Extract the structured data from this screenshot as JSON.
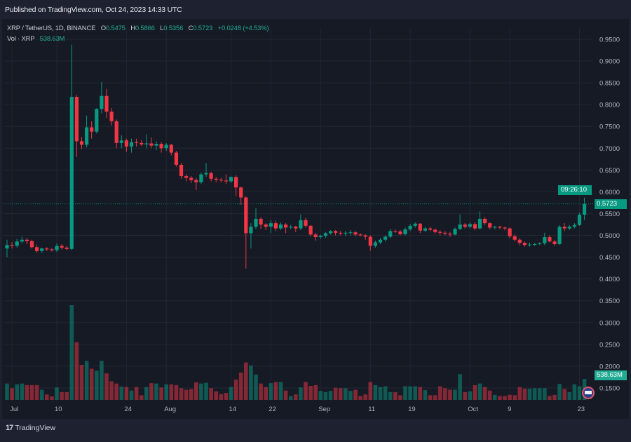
{
  "header": {
    "published": "Published on TradingView.com, Oct 24, 2023 14:33 UTC"
  },
  "legend": {
    "symbol": "XRP / TetherUS, 1D, BINANCE",
    "o_label": "O",
    "o": "0.5475",
    "h_label": "H",
    "h": "0.5866",
    "l_label": "L",
    "l": "0.5356",
    "c_label": "C",
    "c": "0.5723",
    "change": "+0.0248 (+4.53%)",
    "vol_label": "Vol · XRP",
    "vol": "538.63M"
  },
  "last_price": {
    "price": "0.5723",
    "countdown": "09:26:10"
  },
  "volume_label": "538.63M",
  "footer": {
    "logo_text": "TradingView"
  },
  "colors": {
    "up": "#089981",
    "down": "#f23645",
    "background": "#161a25",
    "grid": "#222633"
  },
  "chart_data": {
    "type": "candlestick",
    "symbol": "XRP/USDT",
    "interval": "1D",
    "price_ticks": [
      "0.9500",
      "0.9000",
      "0.8500",
      "0.8000",
      "0.7500",
      "0.7000",
      "0.6500",
      "0.6000",
      "0.5500",
      "0.5000",
      "0.4500",
      "0.4000",
      "0.3500",
      "0.3000",
      "0.2500",
      "0.2000",
      "0.1500"
    ],
    "time_ticks": [
      {
        "date": "2023-07-01",
        "label": "Jul"
      },
      {
        "date": "2023-07-10",
        "label": "10"
      },
      {
        "date": "2023-07-24",
        "label": "24"
      },
      {
        "date": "2023-08-01",
        "label": "Aug"
      },
      {
        "date": "2023-08-14",
        "label": "14"
      },
      {
        "date": "2023-08-22",
        "label": "22"
      },
      {
        "date": "2023-09-01",
        "label": "Sep"
      },
      {
        "date": "2023-09-11",
        "label": "11"
      },
      {
        "date": "2023-09-19",
        "label": "19"
      },
      {
        "date": "2023-10-01",
        "label": "Oct"
      },
      {
        "date": "2023-10-09",
        "label": "9"
      },
      {
        "date": "2023-10-23",
        "label": "23"
      }
    ],
    "grid": true,
    "volume_unit": "M",
    "columns": [
      "date",
      "open",
      "high",
      "low",
      "close",
      "volume"
    ],
    "candles": [
      [
        "2023-06-30",
        0.47,
        0.49,
        0.45,
        0.478,
        420
      ],
      [
        "2023-07-01",
        0.478,
        0.485,
        0.47,
        0.476,
        300
      ],
      [
        "2023-07-02",
        0.476,
        0.492,
        0.472,
        0.486,
        400
      ],
      [
        "2023-07-03",
        0.486,
        0.497,
        0.482,
        0.49,
        420
      ],
      [
        "2023-07-04",
        0.49,
        0.494,
        0.48,
        0.487,
        380
      ],
      [
        "2023-07-05",
        0.487,
        0.49,
        0.47,
        0.473,
        380
      ],
      [
        "2023-07-06",
        0.473,
        0.478,
        0.46,
        0.464,
        380
      ],
      [
        "2023-07-07",
        0.464,
        0.472,
        0.46,
        0.47,
        260
      ],
      [
        "2023-07-08",
        0.47,
        0.473,
        0.464,
        0.468,
        140
      ],
      [
        "2023-07-09",
        0.468,
        0.471,
        0.463,
        0.466,
        90
      ],
      [
        "2023-07-10",
        0.466,
        0.482,
        0.462,
        0.476,
        320
      ],
      [
        "2023-07-11",
        0.476,
        0.48,
        0.468,
        0.472,
        200
      ],
      [
        "2023-07-12",
        0.472,
        0.476,
        0.466,
        0.469,
        200
      ],
      [
        "2023-07-13",
        0.469,
        0.938,
        0.466,
        0.818,
        2430
      ],
      [
        "2023-07-14",
        0.818,
        0.822,
        0.68,
        0.716,
        1480
      ],
      [
        "2023-07-15",
        0.716,
        0.726,
        0.698,
        0.708,
        900
      ],
      [
        "2023-07-16",
        0.708,
        0.775,
        0.702,
        0.748,
        1000
      ],
      [
        "2023-07-17",
        0.748,
        0.762,
        0.722,
        0.738,
        800
      ],
      [
        "2023-07-18",
        0.738,
        0.792,
        0.734,
        0.79,
        750
      ],
      [
        "2023-07-19",
        0.79,
        0.852,
        0.78,
        0.82,
        1000
      ],
      [
        "2023-07-20",
        0.82,
        0.836,
        0.77,
        0.784,
        680
      ],
      [
        "2023-07-21",
        0.784,
        0.792,
        0.752,
        0.762,
        480
      ],
      [
        "2023-07-22",
        0.762,
        0.766,
        0.7,
        0.712,
        420
      ],
      [
        "2023-07-23",
        0.712,
        0.73,
        0.7,
        0.718,
        340
      ],
      [
        "2023-07-24",
        0.718,
        0.722,
        0.692,
        0.704,
        330
      ],
      [
        "2023-07-25",
        0.704,
        0.722,
        0.69,
        0.714,
        240
      ],
      [
        "2023-07-26",
        0.714,
        0.722,
        0.704,
        0.712,
        330
      ],
      [
        "2023-07-27",
        0.712,
        0.719,
        0.705,
        0.709,
        120
      ],
      [
        "2023-07-28",
        0.709,
        0.732,
        0.7,
        0.711,
        330
      ],
      [
        "2023-07-29",
        0.711,
        0.725,
        0.7,
        0.706,
        430
      ],
      [
        "2023-07-30",
        0.706,
        0.716,
        0.696,
        0.71,
        420
      ],
      [
        "2023-07-31",
        0.71,
        0.714,
        0.69,
        0.7,
        320
      ],
      [
        "2023-08-01",
        0.7,
        0.712,
        0.694,
        0.708,
        400
      ],
      [
        "2023-08-02",
        0.708,
        0.71,
        0.684,
        0.69,
        400
      ],
      [
        "2023-08-03",
        0.69,
        0.694,
        0.658,
        0.662,
        380
      ],
      [
        "2023-08-04",
        0.662,
        0.666,
        0.63,
        0.636,
        300
      ],
      [
        "2023-08-05",
        0.636,
        0.64,
        0.624,
        0.632,
        260
      ],
      [
        "2023-08-06",
        0.632,
        0.636,
        0.62,
        0.627,
        280
      ],
      [
        "2023-08-07",
        0.627,
        0.632,
        0.604,
        0.622,
        450
      ],
      [
        "2023-08-08",
        0.622,
        0.644,
        0.618,
        0.64,
        420
      ],
      [
        "2023-08-09",
        0.64,
        0.666,
        0.634,
        0.643,
        440
      ],
      [
        "2023-08-10",
        0.643,
        0.646,
        0.624,
        0.63,
        300
      ],
      [
        "2023-08-11",
        0.63,
        0.634,
        0.622,
        0.628,
        220
      ],
      [
        "2023-08-12",
        0.628,
        0.632,
        0.622,
        0.626,
        150
      ],
      [
        "2023-08-13",
        0.626,
        0.64,
        0.618,
        0.624,
        180
      ],
      [
        "2023-08-14",
        0.624,
        0.636,
        0.62,
        0.634,
        330
      ],
      [
        "2023-08-15",
        0.634,
        0.638,
        0.59,
        0.61,
        520
      ],
      [
        "2023-08-16",
        0.61,
        0.612,
        0.57,
        0.587,
        700
      ],
      [
        "2023-08-17",
        0.587,
        0.59,
        0.424,
        0.505,
        960
      ],
      [
        "2023-08-18",
        0.505,
        0.528,
        0.47,
        0.52,
        880
      ],
      [
        "2023-08-19",
        0.52,
        0.562,
        0.515,
        0.538,
        650
      ],
      [
        "2023-08-20",
        0.538,
        0.542,
        0.515,
        0.525,
        420
      ],
      [
        "2023-08-21",
        0.525,
        0.528,
        0.512,
        0.52,
        330
      ],
      [
        "2023-08-22",
        0.52,
        0.535,
        0.505,
        0.528,
        430
      ],
      [
        "2023-08-23",
        0.528,
        0.534,
        0.51,
        0.516,
        460
      ],
      [
        "2023-08-24",
        0.516,
        0.53,
        0.512,
        0.525,
        460
      ],
      [
        "2023-08-25",
        0.525,
        0.528,
        0.505,
        0.518,
        240
      ],
      [
        "2023-08-26",
        0.518,
        0.524,
        0.514,
        0.52,
        100
      ],
      [
        "2023-08-27",
        0.52,
        0.522,
        0.508,
        0.516,
        140
      ],
      [
        "2023-08-28",
        0.516,
        0.548,
        0.512,
        0.535,
        320
      ],
      [
        "2023-08-29",
        0.535,
        0.54,
        0.518,
        0.522,
        460
      ],
      [
        "2023-08-30",
        0.522,
        0.524,
        0.498,
        0.502,
        360
      ],
      [
        "2023-08-31",
        0.502,
        0.506,
        0.488,
        0.496,
        380
      ],
      [
        "2023-09-01",
        0.496,
        0.502,
        0.492,
        0.499,
        230
      ],
      [
        "2023-09-02",
        0.499,
        0.508,
        0.494,
        0.505,
        200
      ],
      [
        "2023-09-03",
        0.505,
        0.512,
        0.502,
        0.51,
        230
      ],
      [
        "2023-09-04",
        0.51,
        0.512,
        0.5,
        0.506,
        310
      ],
      [
        "2023-09-05",
        0.506,
        0.51,
        0.5,
        0.505,
        300
      ],
      [
        "2023-09-06",
        0.505,
        0.51,
        0.498,
        0.506,
        300
      ],
      [
        "2023-09-07",
        0.506,
        0.512,
        0.5,
        0.507,
        230
      ],
      [
        "2023-09-08",
        0.507,
        0.51,
        0.498,
        0.502,
        260
      ],
      [
        "2023-09-09",
        0.502,
        0.505,
        0.498,
        0.5,
        100
      ],
      [
        "2023-09-10",
        0.5,
        0.503,
        0.49,
        0.497,
        140
      ],
      [
        "2023-09-11",
        0.497,
        0.5,
        0.465,
        0.476,
        460
      ],
      [
        "2023-09-12",
        0.476,
        0.488,
        0.472,
        0.484,
        380
      ],
      [
        "2023-09-13",
        0.484,
        0.494,
        0.48,
        0.49,
        330
      ],
      [
        "2023-09-14",
        0.49,
        0.5,
        0.486,
        0.497,
        350
      ],
      [
        "2023-09-15",
        0.497,
        0.515,
        0.494,
        0.51,
        200
      ],
      [
        "2023-09-16",
        0.51,
        0.514,
        0.506,
        0.509,
        200
      ],
      [
        "2023-09-17",
        0.509,
        0.512,
        0.5,
        0.503,
        120
      ],
      [
        "2023-09-18",
        0.503,
        0.518,
        0.5,
        0.514,
        350
      ],
      [
        "2023-09-19",
        0.514,
        0.526,
        0.51,
        0.522,
        350
      ],
      [
        "2023-09-20",
        0.522,
        0.53,
        0.518,
        0.527,
        350
      ],
      [
        "2023-09-21",
        0.527,
        0.528,
        0.505,
        0.511,
        330
      ],
      [
        "2023-09-22",
        0.511,
        0.52,
        0.508,
        0.516,
        250
      ],
      [
        "2023-09-23",
        0.516,
        0.52,
        0.51,
        0.513,
        120
      ],
      [
        "2023-09-24",
        0.513,
        0.516,
        0.504,
        0.508,
        120
      ],
      [
        "2023-09-25",
        0.508,
        0.512,
        0.5,
        0.506,
        350
      ],
      [
        "2023-09-26",
        0.506,
        0.51,
        0.5,
        0.504,
        300
      ],
      [
        "2023-09-27",
        0.504,
        0.508,
        0.496,
        0.502,
        260
      ],
      [
        "2023-09-28",
        0.502,
        0.518,
        0.5,
        0.515,
        260
      ],
      [
        "2023-09-29",
        0.515,
        0.548,
        0.512,
        0.525,
        660
      ],
      [
        "2023-09-30",
        0.525,
        0.528,
        0.516,
        0.52,
        200
      ],
      [
        "2023-10-01",
        0.52,
        0.53,
        0.516,
        0.526,
        220
      ],
      [
        "2023-10-02",
        0.526,
        0.53,
        0.512,
        0.516,
        380
      ],
      [
        "2023-10-03",
        0.516,
        0.555,
        0.514,
        0.538,
        420
      ],
      [
        "2023-10-04",
        0.538,
        0.542,
        0.524,
        0.528,
        330
      ],
      [
        "2023-10-05",
        0.528,
        0.53,
        0.514,
        0.518,
        240
      ],
      [
        "2023-10-06",
        0.518,
        0.522,
        0.514,
        0.52,
        130
      ],
      [
        "2023-10-07",
        0.52,
        0.522,
        0.514,
        0.518,
        100
      ],
      [
        "2023-10-08",
        0.518,
        0.52,
        0.512,
        0.516,
        100
      ],
      [
        "2023-10-09",
        0.516,
        0.518,
        0.494,
        0.498,
        130
      ],
      [
        "2023-10-10",
        0.498,
        0.502,
        0.486,
        0.49,
        120
      ],
      [
        "2023-10-11",
        0.49,
        0.494,
        0.478,
        0.483,
        330
      ],
      [
        "2023-10-12",
        0.483,
        0.486,
        0.474,
        0.478,
        290
      ],
      [
        "2023-10-13",
        0.478,
        0.484,
        0.474,
        0.479,
        290
      ],
      [
        "2023-10-14",
        0.479,
        0.483,
        0.476,
        0.48,
        300
      ],
      [
        "2023-10-15",
        0.48,
        0.484,
        0.478,
        0.482,
        300
      ],
      [
        "2023-10-16",
        0.482,
        0.506,
        0.478,
        0.496,
        300
      ],
      [
        "2023-10-17",
        0.496,
        0.5,
        0.484,
        0.486,
        100
      ],
      [
        "2023-10-18",
        0.486,
        0.49,
        0.476,
        0.48,
        130
      ],
      [
        "2023-10-19",
        0.48,
        0.524,
        0.478,
        0.52,
        410
      ],
      [
        "2023-10-20",
        0.52,
        0.528,
        0.51,
        0.516,
        280
      ],
      [
        "2023-10-21",
        0.516,
        0.524,
        0.512,
        0.52,
        200
      ],
      [
        "2023-10-22",
        0.52,
        0.528,
        0.516,
        0.524,
        400
      ],
      [
        "2023-10-23",
        0.524,
        0.552,
        0.522,
        0.5475,
        350
      ],
      [
        "2023-10-24",
        0.5475,
        0.5866,
        0.5356,
        0.5723,
        538.63
      ]
    ]
  }
}
